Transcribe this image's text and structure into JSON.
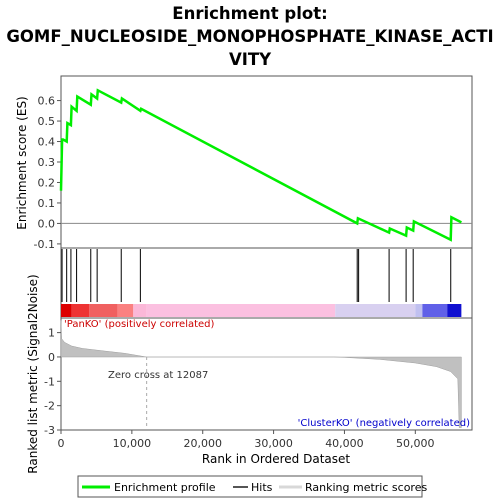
{
  "chart_data": {
    "type": "line",
    "title": "Enrichment plot: GOMF_NUCLEOSIDE_MONOPHOSPHATE_KINASE_ACTIVITY",
    "title_lines": [
      "Enrichment plot:",
      "GOMF_NUCLEOSIDE_MONOPHOSPHATE_KINASE_ACTI",
      "VITY"
    ],
    "xlabel": "Rank in Ordered Dataset",
    "xlim": [
      0,
      58000
    ],
    "x_ticks": [
      0,
      10000,
      20000,
      30000,
      40000,
      50000
    ],
    "x_tick_labels": [
      "0",
      "10,000",
      "20,000",
      "30,000",
      "40,000",
      "50,000"
    ],
    "es_panel": {
      "ylabel": "Enrichment score (ES)",
      "ylim": [
        -0.12,
        0.72
      ],
      "y_ticks": [
        -0.1,
        0.0,
        0.1,
        0.2,
        0.3,
        0.4,
        0.5,
        0.6
      ],
      "y_tick_labels": [
        "-0.1",
        "0.0",
        "0.1",
        "0.2",
        "0.3",
        "0.4",
        "0.5",
        "0.6"
      ],
      "series": [
        {
          "name": "Enrichment profile",
          "color": "#00ee00",
          "x": [
            0,
            150,
            300,
            800,
            900,
            1400,
            1500,
            2200,
            2300,
            4200,
            4300,
            5100,
            5200,
            8500,
            8600,
            11200,
            11300,
            41800,
            41900,
            46300,
            46400,
            48700,
            48800,
            49700,
            49800,
            55000,
            55100,
            56500
          ],
          "values": [
            0.16,
            0.41,
            0.41,
            0.4,
            0.49,
            0.48,
            0.57,
            0.55,
            0.62,
            0.58,
            0.63,
            0.61,
            0.65,
            0.59,
            0.61,
            0.55,
            0.56,
            0.0,
            0.025,
            -0.045,
            -0.025,
            -0.06,
            -0.02,
            -0.035,
            0.01,
            -0.08,
            0.03,
            0.005
          ]
        }
      ]
    },
    "hits": {
      "name": "Hits",
      "color": "#000000",
      "ranks": [
        150,
        800,
        1400,
        2200,
        4200,
        5100,
        8500,
        11200,
        41800,
        42000,
        46300,
        48700,
        49700,
        55000
      ]
    },
    "metric_panel": {
      "ylabel": "Ranked list metric (Signal2Noise)",
      "ylim": [
        -3,
        1.6
      ],
      "y_ticks": [
        -3,
        -2,
        -1,
        0,
        1
      ],
      "y_tick_labels": [
        "-3",
        "-2",
        "-1",
        "0",
        "1"
      ],
      "series": [
        {
          "name": "Ranking metric scores",
          "color": "#c0c0c0",
          "x": [
            0,
            100,
            500,
            1500,
            3000,
            6000,
            9000,
            12087,
            20000,
            30000,
            38500,
            40000,
            45000,
            50000,
            53000,
            55000,
            56000,
            56200,
            56500
          ],
          "values": [
            1.5,
            0.75,
            0.6,
            0.45,
            0.35,
            0.25,
            0.15,
            0.0,
            0.0,
            0.0,
            0.0,
            -0.02,
            -0.1,
            -0.25,
            -0.4,
            -0.6,
            -0.9,
            -2.9,
            -2.9
          ]
        }
      ],
      "zero_cross_label": "Zero cross at 12087",
      "zero_cross": 12087,
      "pos_label": "'PanKO' (positively correlated)",
      "neg_label": "'ClusterKO' (negatively correlated)"
    },
    "color_bar": {
      "colors": [
        "#dd0000",
        "#ee3333",
        "#f06060",
        "#fa8080",
        "#fbb8d8",
        "#fbc0e0",
        "#d8d0f0",
        "#c0c0f0",
        "#6060e8",
        "#1010d0"
      ],
      "breaks": [
        0,
        1500,
        4000,
        8000,
        10200,
        12087,
        38700,
        50000,
        51000,
        54500,
        56500
      ]
    },
    "legend": [
      {
        "label": "Enrichment profile",
        "color": "#00ee00"
      },
      {
        "label": "Hits",
        "color": "#000000"
      },
      {
        "label": "Ranking metric scores",
        "color": "#c0c0c0"
      }
    ],
    "grid": false,
    "legend_position": "bottom"
  }
}
